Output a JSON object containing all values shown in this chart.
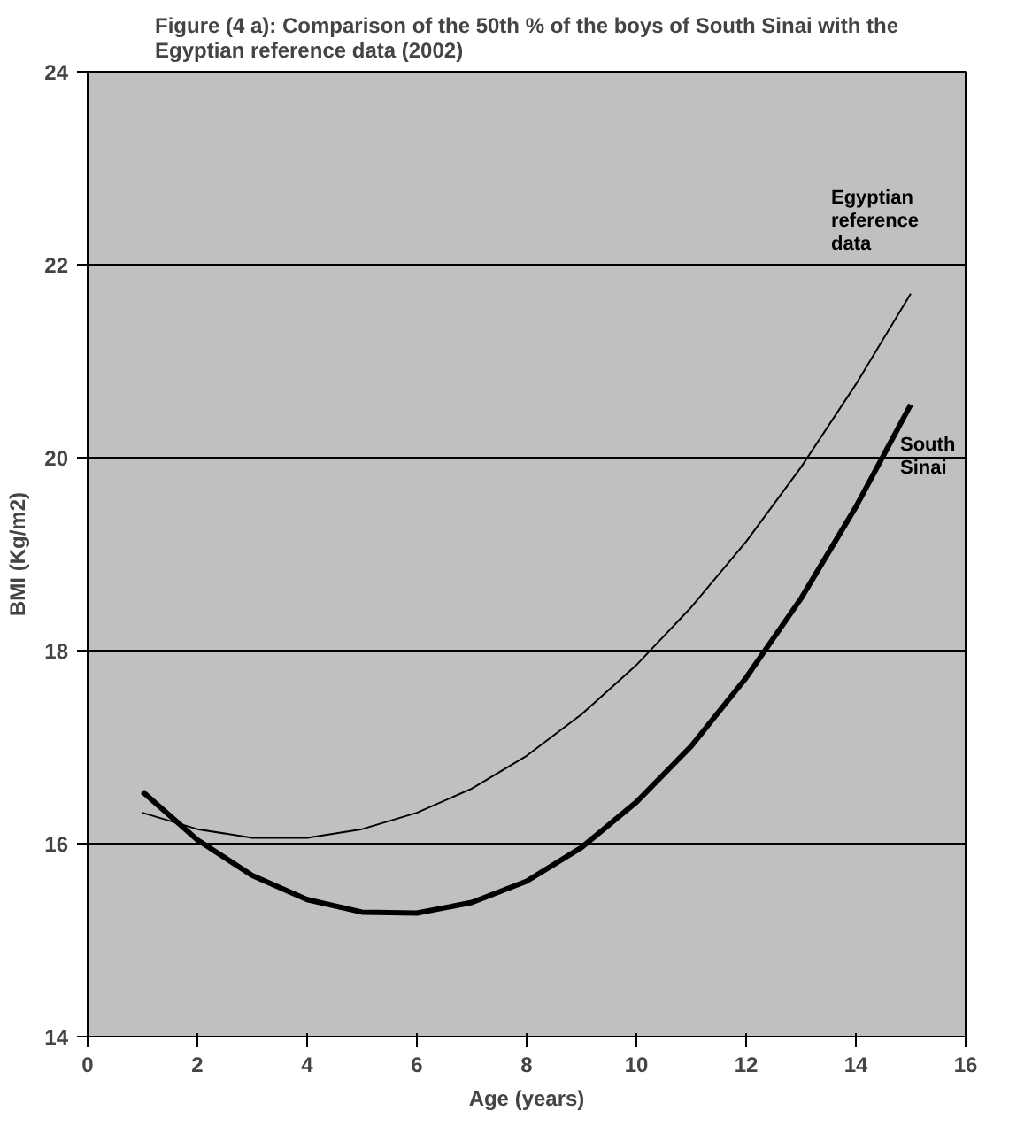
{
  "chart_data": {
    "type": "line",
    "title": "Figure (4 a): Comparison of the 50th % of the boys of South Sinai with the Egyptian reference data (2002)",
    "xlabel": "Age (years)",
    "ylabel": "BMI (Kg/m2)",
    "x": [
      1,
      2,
      3,
      4,
      5,
      6,
      7,
      8,
      9,
      10,
      11,
      12,
      13,
      14,
      15
    ],
    "series": [
      {
        "name": "Egyptian reference data",
        "color": "#000000",
        "values": [
          16.32,
          16.15,
          16.06,
          16.06,
          16.15,
          16.32,
          16.57,
          16.91,
          17.34,
          17.85,
          18.45,
          19.13,
          19.9,
          20.76,
          21.7
        ]
      },
      {
        "name": "South Sinai",
        "color": "#000000",
        "values": [
          16.54,
          16.04,
          15.67,
          15.42,
          15.29,
          15.28,
          15.39,
          15.61,
          15.96,
          16.43,
          17.01,
          17.72,
          18.54,
          19.49,
          20.55
        ]
      }
    ],
    "xlim": [
      0,
      16
    ],
    "xticks": [
      0,
      2,
      4,
      6,
      8,
      10,
      12,
      14,
      16
    ],
    "ylim": [
      14,
      24
    ],
    "yticks": [
      14,
      16,
      18,
      20,
      22,
      24
    ],
    "grid": "y",
    "legend": false,
    "marker": "none",
    "line_style": "solid"
  }
}
